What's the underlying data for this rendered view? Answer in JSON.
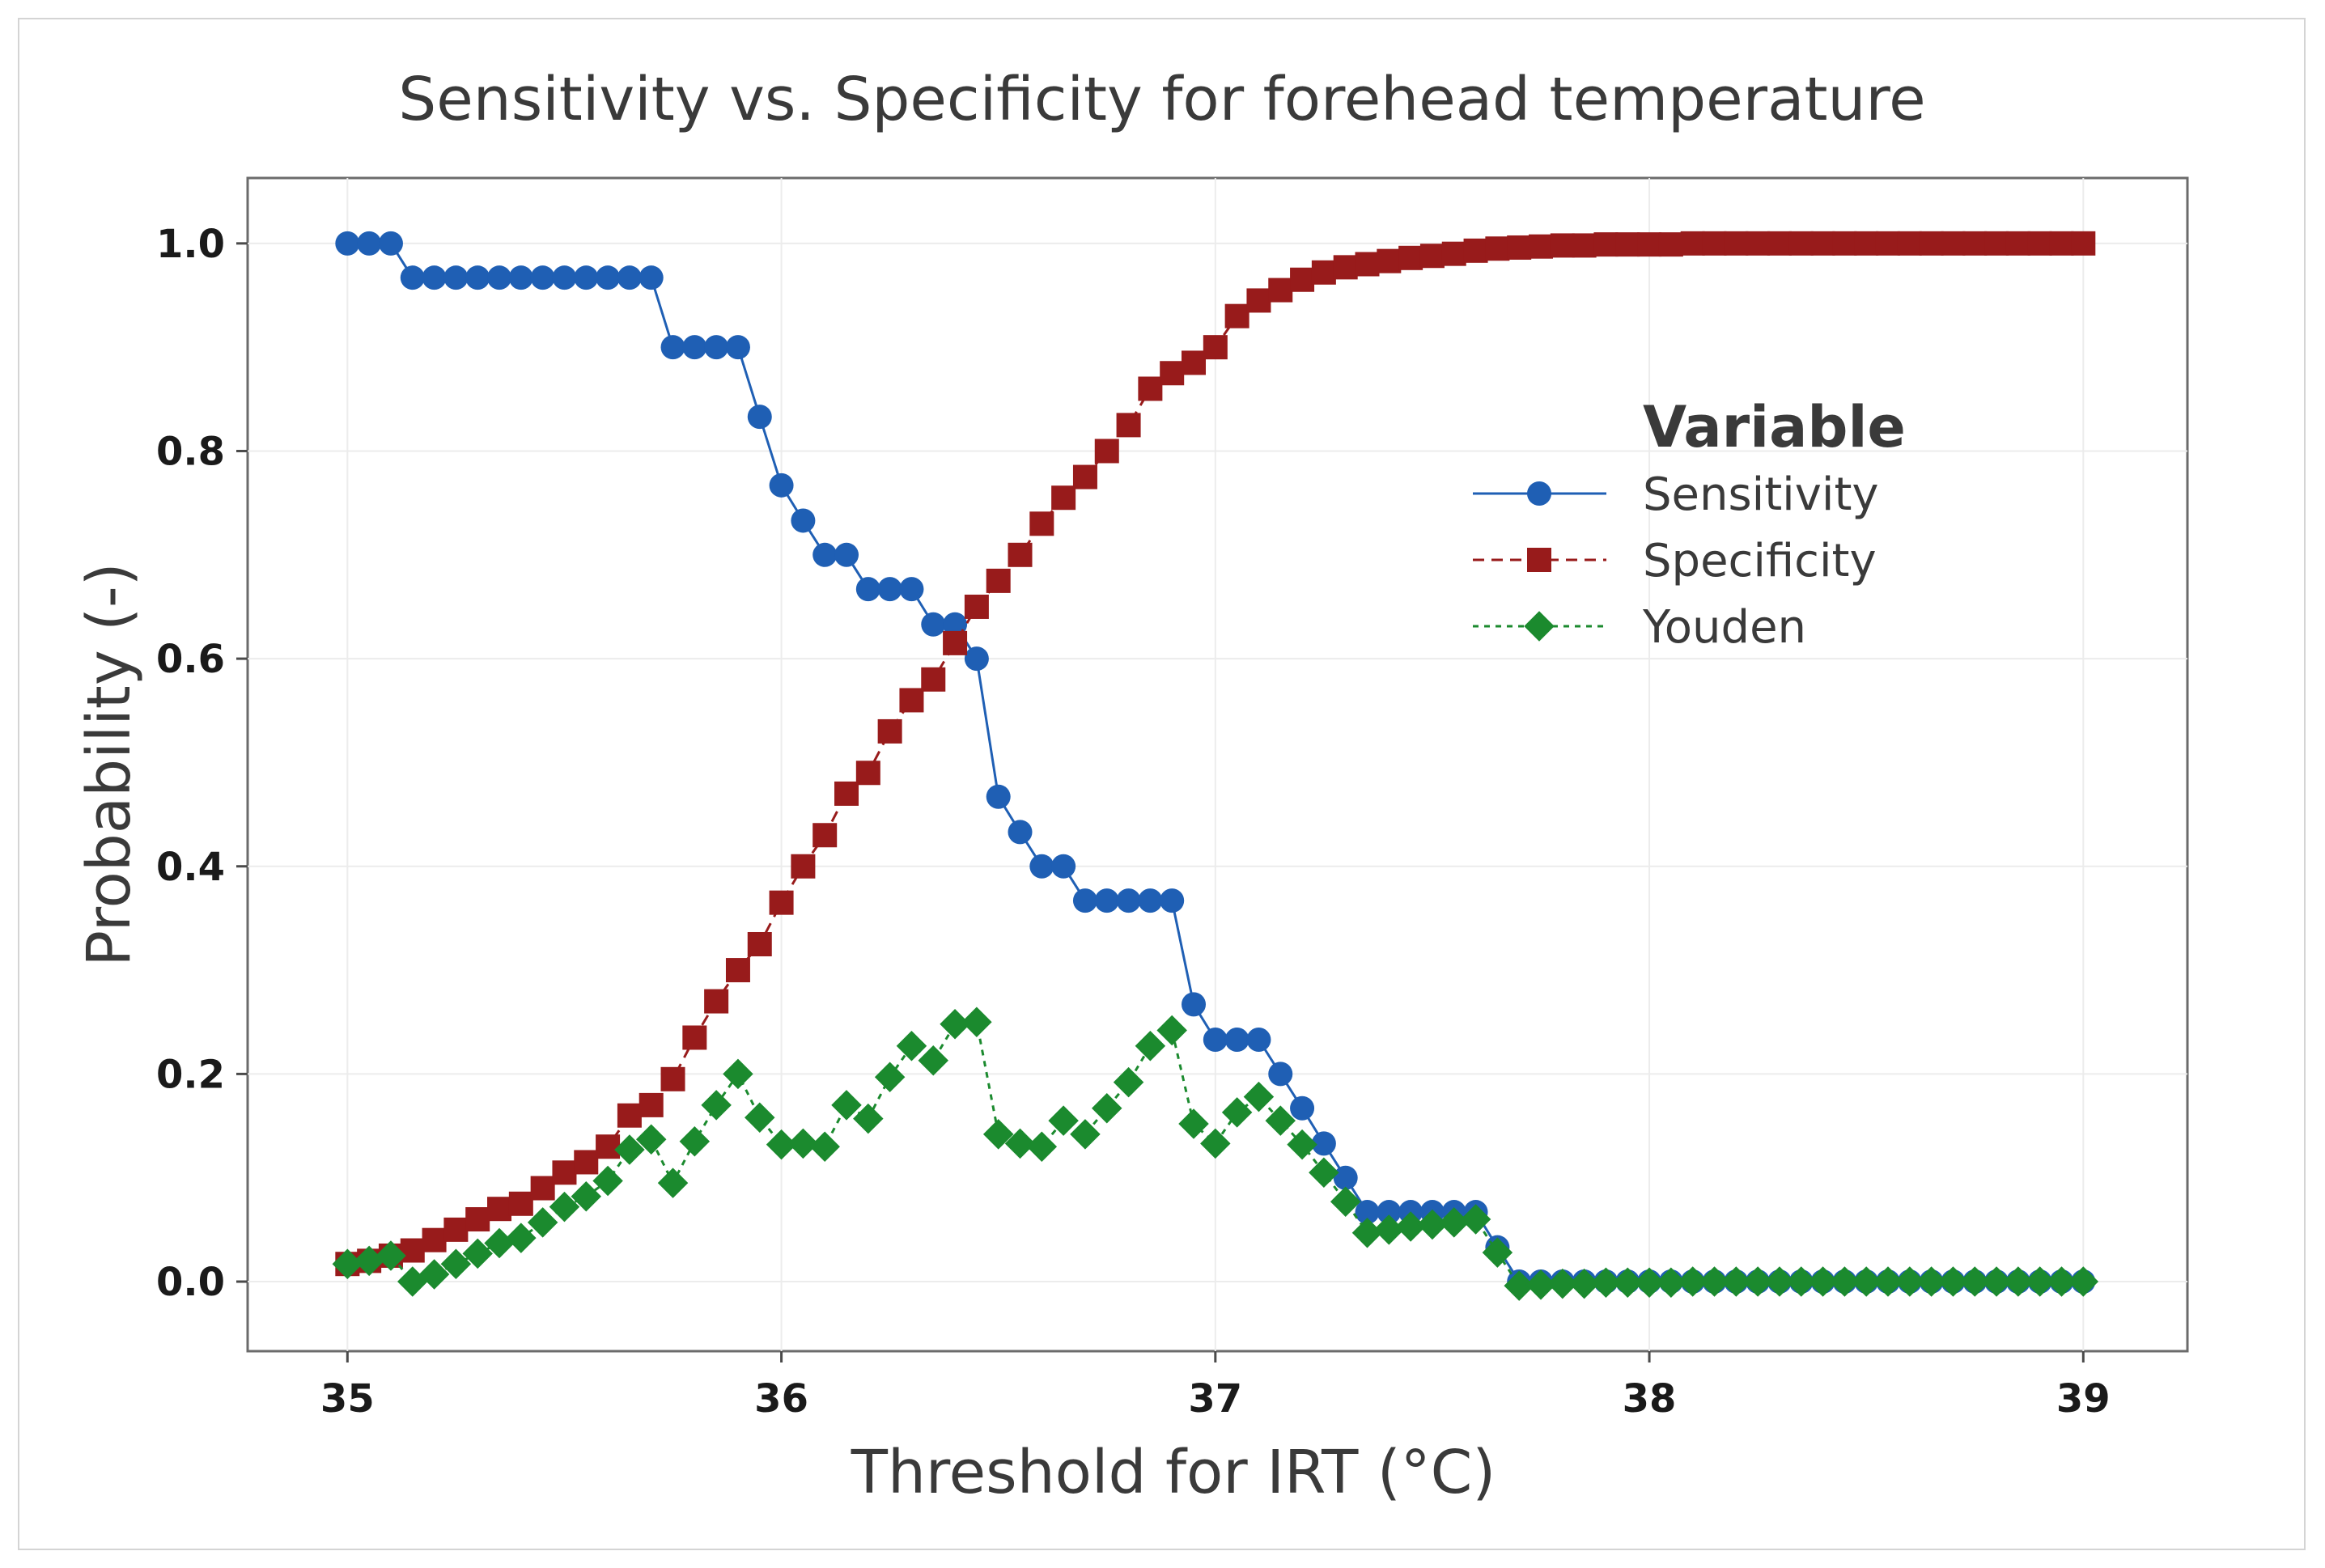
{
  "chart_data": {
    "type": "line",
    "title": "Sensitivity vs. Specificity for forehead temperature",
    "xlabel": "Threshold for IRT (°C)",
    "ylabel": "Probability (-)",
    "xlim": [
      34.77,
      39.24
    ],
    "ylim": [
      -0.067,
      1.063
    ],
    "xticks": [
      35,
      36,
      37,
      38,
      39
    ],
    "yticks": [
      0.0,
      0.2,
      0.4,
      0.6,
      0.8,
      1.0
    ],
    "xtick_labels": [
      "35",
      "36",
      "37",
      "38",
      "39"
    ],
    "ytick_labels": [
      "0.0",
      "0.2",
      "0.4",
      "0.6",
      "0.8",
      "1.0"
    ],
    "grid": true,
    "legend": {
      "title": "Variable",
      "position": "upper-right-inside",
      "entries": [
        "Sensitivity",
        "Specificity",
        "Youden"
      ]
    },
    "x": [
      35.0,
      35.05,
      35.1,
      35.15,
      35.2,
      35.25,
      35.3,
      35.35,
      35.4,
      35.45,
      35.5,
      35.55,
      35.6,
      35.65,
      35.7,
      35.75,
      35.8,
      35.85,
      35.9,
      35.95,
      36.0,
      36.05,
      36.1,
      36.15,
      36.2,
      36.25,
      36.3,
      36.35,
      36.4,
      36.45,
      36.5,
      36.55,
      36.6,
      36.65,
      36.7,
      36.75,
      36.8,
      36.85,
      36.9,
      36.95,
      37.0,
      37.05,
      37.1,
      37.15,
      37.2,
      37.25,
      37.3,
      37.35,
      37.4,
      37.45,
      37.5,
      37.55,
      37.6,
      37.65,
      37.7,
      37.75,
      37.8,
      37.85,
      37.9,
      37.95,
      38.0,
      38.05,
      38.1,
      38.15,
      38.2,
      38.25,
      38.3,
      38.35,
      38.4,
      38.45,
      38.5,
      38.55,
      38.6,
      38.65,
      38.7,
      38.75,
      38.8,
      38.85,
      38.9,
      38.95,
      39.0
    ],
    "series": [
      {
        "name": "Sensitivity",
        "color": "#1f5fb4",
        "line_style": "solid",
        "marker": "circle",
        "values": [
          1.0,
          1.0,
          1.0,
          0.967,
          0.967,
          0.967,
          0.967,
          0.967,
          0.967,
          0.967,
          0.967,
          0.967,
          0.967,
          0.967,
          0.967,
          0.9,
          0.9,
          0.9,
          0.9,
          0.833,
          0.767,
          0.733,
          0.7,
          0.7,
          0.667,
          0.667,
          0.667,
          0.633,
          0.633,
          0.6,
          0.467,
          0.433,
          0.4,
          0.4,
          0.367,
          0.367,
          0.367,
          0.367,
          0.367,
          0.267,
          0.233,
          0.233,
          0.233,
          0.2,
          0.167,
          0.133,
          0.1,
          0.067,
          0.067,
          0.067,
          0.067,
          0.067,
          0.067,
          0.033,
          0.0,
          0.0,
          0.0,
          0.0,
          0.0,
          0.0,
          0.0,
          0.0,
          0.0,
          0.0,
          0.0,
          0.0,
          0.0,
          0.0,
          0.0,
          0.0,
          0.0,
          0.0,
          0.0,
          0.0,
          0.0,
          0.0,
          0.0,
          0.0,
          0.0,
          0.0,
          0.0
        ]
      },
      {
        "name": "Specificity",
        "color": "#981b1b",
        "line_style": "dashed",
        "marker": "square",
        "values": [
          0.017,
          0.02,
          0.025,
          0.03,
          0.04,
          0.05,
          0.06,
          0.07,
          0.075,
          0.09,
          0.105,
          0.115,
          0.13,
          0.16,
          0.17,
          0.195,
          0.235,
          0.27,
          0.3,
          0.325,
          0.365,
          0.4,
          0.43,
          0.47,
          0.49,
          0.53,
          0.56,
          0.58,
          0.615,
          0.65,
          0.675,
          0.7,
          0.73,
          0.755,
          0.775,
          0.8,
          0.825,
          0.86,
          0.875,
          0.885,
          0.9,
          0.93,
          0.945,
          0.955,
          0.965,
          0.972,
          0.977,
          0.98,
          0.983,
          0.986,
          0.988,
          0.99,
          0.993,
          0.995,
          0.996,
          0.997,
          0.998,
          0.998,
          0.999,
          0.999,
          0.999,
          0.999,
          1.0,
          1.0,
          1.0,
          1.0,
          1.0,
          1.0,
          1.0,
          1.0,
          1.0,
          1.0,
          1.0,
          1.0,
          1.0,
          1.0,
          1.0,
          1.0,
          1.0,
          1.0,
          1.0
        ]
      },
      {
        "name": "Youden",
        "color": "#1b8a2e",
        "line_style": "dotted",
        "marker": "diamond",
        "values": [
          0.017,
          0.02,
          0.025,
          0.0,
          0.007,
          0.017,
          0.027,
          0.037,
          0.042,
          0.057,
          0.072,
          0.082,
          0.097,
          0.127,
          0.137,
          0.095,
          0.135,
          0.17,
          0.2,
          0.158,
          0.132,
          0.133,
          0.13,
          0.17,
          0.157,
          0.197,
          0.227,
          0.213,
          0.248,
          0.25,
          0.142,
          0.133,
          0.13,
          0.155,
          0.142,
          0.167,
          0.192,
          0.227,
          0.242,
          0.152,
          0.133,
          0.163,
          0.178,
          0.155,
          0.132,
          0.105,
          0.077,
          0.047,
          0.05,
          0.053,
          0.055,
          0.057,
          0.06,
          0.028,
          -0.004,
          -0.003,
          -0.002,
          -0.002,
          -0.001,
          -0.001,
          -0.001,
          -0.001,
          0.0,
          0.0,
          0.0,
          0.0,
          0.0,
          0.0,
          0.0,
          0.0,
          0.0,
          0.0,
          0.0,
          0.0,
          0.0,
          0.0,
          0.0,
          0.0,
          0.0,
          0.0,
          0.0
        ]
      }
    ]
  }
}
